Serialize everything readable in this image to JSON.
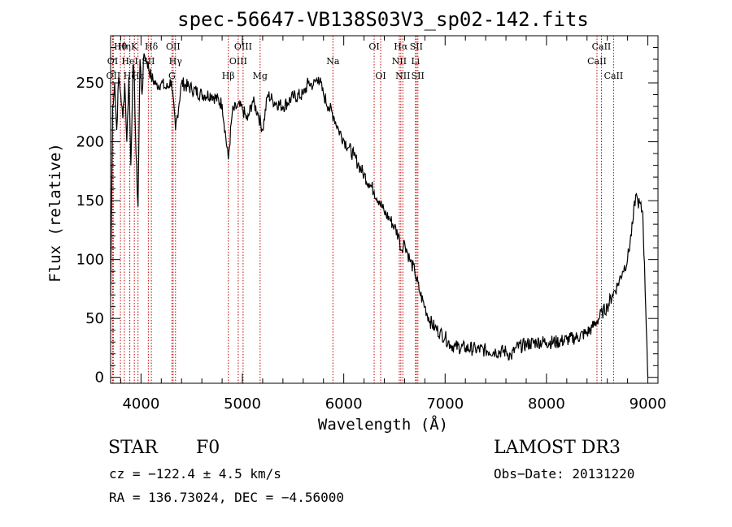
{
  "chart_data": {
    "type": "line",
    "title": "spec-56647-VB138S03V3_sp02-142.fits",
    "xlabel": "Wavelength (Å)",
    "ylabel": "Flux (relative)",
    "xlim": [
      3700,
      9100
    ],
    "ylim": [
      -5,
      290
    ],
    "x_ticks": [
      4000,
      5000,
      6000,
      7000,
      8000,
      9000
    ],
    "y_ticks": [
      0,
      50,
      100,
      150,
      200,
      250
    ],
    "grid": false,
    "series": [
      {
        "name": "flux",
        "x": [
          3700,
          3720,
          3740,
          3760,
          3780,
          3800,
          3820,
          3840,
          3860,
          3880,
          3900,
          3920,
          3935,
          3950,
          3970,
          3990,
          4010,
          4030,
          4060,
          4100,
          4150,
          4200,
          4250,
          4300,
          4340,
          4400,
          4500,
          4600,
          4700,
          4800,
          4861,
          4900,
          4950,
          5000,
          5050,
          5100,
          5150,
          5200,
          5250,
          5300,
          5400,
          5500,
          5600,
          5650,
          5700,
          5750,
          5800,
          5850,
          5900,
          5950,
          6000,
          6050,
          6100,
          6150,
          6200,
          6250,
          6300,
          6350,
          6400,
          6450,
          6500,
          6550,
          6563,
          6600,
          6650,
          6700,
          6750,
          6800,
          6850,
          6900,
          6950,
          7000,
          7050,
          7100,
          7200,
          7300,
          7400,
          7500,
          7600,
          7650,
          7700,
          7800,
          7900,
          8000,
          8100,
          8200,
          8300,
          8400,
          8450,
          8500,
          8550,
          8600,
          8650,
          8700,
          8750,
          8800,
          8850,
          8880,
          8900,
          8950,
          8990,
          9000
        ],
        "values": [
          70,
          230,
          250,
          210,
          255,
          240,
          220,
          250,
          200,
          255,
          180,
          265,
          250,
          190,
          145,
          270,
          240,
          275,
          268,
          255,
          248,
          250,
          245,
          252,
          210,
          250,
          245,
          240,
          240,
          232,
          185,
          225,
          230,
          228,
          218,
          235,
          225,
          210,
          240,
          235,
          230,
          238,
          240,
          250,
          248,
          255,
          240,
          230,
          222,
          210,
          202,
          195,
          188,
          180,
          172,
          165,
          158,
          150,
          140,
          135,
          128,
          118,
          108,
          115,
          100,
          90,
          72,
          60,
          48,
          42,
          38,
          34,
          28,
          26,
          25,
          24,
          23,
          22,
          22,
          18,
          25,
          28,
          30,
          30,
          30,
          32,
          34,
          38,
          42,
          48,
          55,
          60,
          70,
          78,
          90,
          100,
          130,
          155,
          150,
          140,
          30,
          0
        ]
      }
    ],
    "lines": [
      {
        "label": "OII",
        "wave": 3727,
        "row": 3
      },
      {
        "label": "Hθ",
        "wave": 3797,
        "row": 1
      },
      {
        "label": "Hη",
        "wave": 3835,
        "row": 1
      },
      {
        "label": "OI",
        "wave": 3720,
        "row": 2
      },
      {
        "label": "HeI",
        "wave": 3889,
        "row": 2
      },
      {
        "label": "Hζ",
        "wave": 3889,
        "row": 3
      },
      {
        "label": "K",
        "wave": 3934,
        "row": 1
      },
      {
        "label": "SII",
        "wave": 4072,
        "row": 2
      },
      {
        "label": "Hε",
        "wave": 3970,
        "row": 3
      },
      {
        "label": "Hδ",
        "wave": 4102,
        "row": 1
      },
      {
        "label": "OII",
        "wave": 4317,
        "row": 1
      },
      {
        "label": "Hγ",
        "wave": 4340,
        "row": 2
      },
      {
        "label": "G",
        "wave": 4305,
        "row": 3
      },
      {
        "label": "OIII",
        "wave": 5007,
        "row": 1
      },
      {
        "label": "OIII",
        "wave": 4959,
        "row": 2
      },
      {
        "label": "Hβ",
        "wave": 4861,
        "row": 3
      },
      {
        "label": "Mg",
        "wave": 5175,
        "row": 3
      },
      {
        "label": "Na",
        "wave": 5893,
        "row": 2
      },
      {
        "label": "OI",
        "wave": 6300,
        "row": 1
      },
      {
        "label": "OI",
        "wave": 6364,
        "row": 3
      },
      {
        "label": "Hα",
        "wave": 6563,
        "row": 1
      },
      {
        "label": "SII",
        "wave": 6716,
        "row": 1
      },
      {
        "label": "NII",
        "wave": 6548,
        "row": 2
      },
      {
        "label": "Li",
        "wave": 6708,
        "row": 2
      },
      {
        "label": "NII",
        "wave": 6583,
        "row": 3
      },
      {
        "label": "SII",
        "wave": 6731,
        "row": 3
      },
      {
        "label": "CaII",
        "wave": 8542,
        "row": 1
      },
      {
        "label": "CaII",
        "wave": 8498,
        "row": 2
      },
      {
        "label": "CaII",
        "wave": 8662,
        "row": 3
      }
    ]
  },
  "info": {
    "object_class": "STAR",
    "subclass": "F0",
    "survey": "LAMOST DR3",
    "cz": "cz = −122.4 ± 4.5 km/s",
    "obs_date": "Obs−Date: 20131220",
    "coords": "RA = 136.73024, DEC =  −4.56000"
  }
}
